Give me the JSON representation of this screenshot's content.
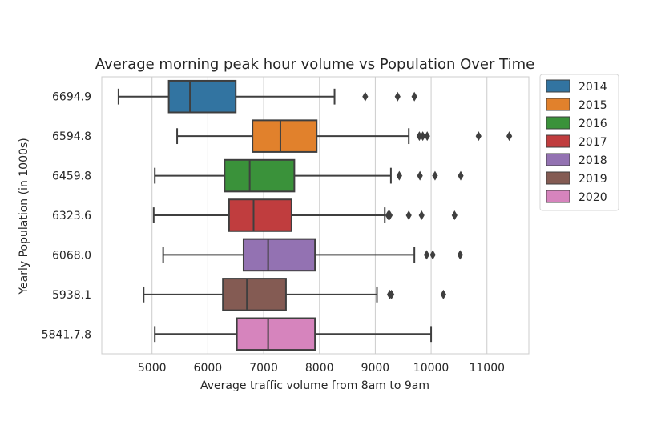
{
  "chart_data": {
    "type": "boxplot",
    "orientation": "horizontal",
    "title": "Average morning peak hour volume vs Population Over Time",
    "xlabel": "Average traffic volume from 8am to 9am",
    "ylabel": "Yearly Population (in 1000s)",
    "xlim": [
      4100,
      11750
    ],
    "xticks": [
      5000,
      6000,
      7000,
      8000,
      9000,
      10000,
      11000
    ],
    "grid": "vertical",
    "legend_position": "outside-right",
    "categories": [
      "6694.9",
      "6594.8",
      "6459.8",
      "6323.6",
      "6068.0",
      "5938.1",
      "5841.7.8"
    ],
    "series": [
      {
        "name": "2014",
        "color": "#3274a1",
        "whisker_low": 4400,
        "q1": 5300,
        "median": 5680,
        "q3": 6500,
        "whisker_high": 8270,
        "outliers": [
          8820,
          9400,
          9700
        ]
      },
      {
        "name": "2015",
        "color": "#e1812c",
        "whisker_low": 5450,
        "q1": 6800,
        "median": 7300,
        "q3": 7950,
        "whisker_high": 9600,
        "outliers": [
          9790,
          9850,
          9930,
          10850,
          11400
        ]
      },
      {
        "name": "2016",
        "color": "#3a923a",
        "whisker_low": 5050,
        "q1": 6300,
        "median": 6750,
        "q3": 7550,
        "whisker_high": 9280,
        "outliers": [
          9430,
          9800,
          10070,
          10530
        ]
      },
      {
        "name": "2017",
        "color": "#c03d3e",
        "whisker_low": 5030,
        "q1": 6380,
        "median": 6820,
        "q3": 7500,
        "whisker_high": 9170,
        "outliers": [
          9230,
          9260,
          9600,
          9830,
          10420
        ]
      },
      {
        "name": "2018",
        "color": "#9372b2",
        "whisker_low": 5200,
        "q1": 6640,
        "median": 7080,
        "q3": 7920,
        "whisker_high": 9700,
        "outliers": [
          9920,
          10030,
          10520
        ]
      },
      {
        "name": "2019",
        "color": "#845b53",
        "whisker_low": 4850,
        "q1": 6270,
        "median": 6700,
        "q3": 7400,
        "whisker_high": 9030,
        "outliers": [
          9260,
          9290,
          10220
        ]
      },
      {
        "name": "2020",
        "color": "#d684bd",
        "whisker_low": 5050,
        "q1": 6520,
        "median": 7080,
        "q3": 7920,
        "whisker_high": 10000,
        "outliers": []
      }
    ]
  }
}
